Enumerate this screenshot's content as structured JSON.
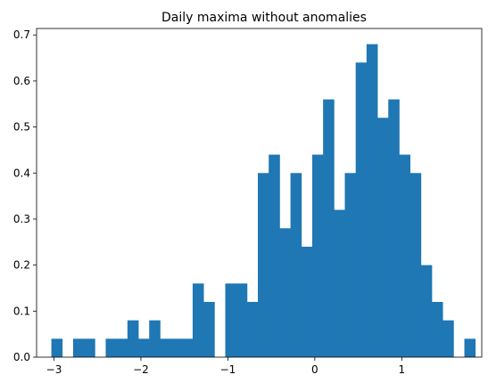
{
  "chart_data": {
    "type": "bar",
    "title": "Daily maxima without anomalies",
    "xlabel": "",
    "ylabel": "",
    "xlim": [
      -3.2,
      1.92
    ],
    "ylim": [
      0,
      0.714
    ],
    "x_ticks": [
      -3,
      -2,
      -1,
      0,
      1
    ],
    "x_tick_labels": [
      "−3",
      "−2",
      "−1",
      "0",
      "1"
    ],
    "y_ticks": [
      0.0,
      0.1,
      0.2,
      0.3,
      0.4,
      0.5,
      0.6,
      0.7
    ],
    "y_tick_labels": [
      "0.0",
      "0.1",
      "0.2",
      "0.3",
      "0.4",
      "0.5",
      "0.6",
      "0.7"
    ],
    "grid": false,
    "bar_color": "#1f77b4",
    "bin_edges": [
      -3.03,
      -2.905,
      -2.78,
      -2.655,
      -2.53,
      -2.405,
      -2.28,
      -2.155,
      -2.03,
      -1.905,
      -1.78,
      -1.655,
      -1.53,
      -1.405,
      -1.28,
      -1.155,
      -1.03,
      -0.905,
      -0.78,
      -0.655,
      -0.53,
      -0.405,
      -0.28,
      -0.155,
      -0.03,
      0.095,
      0.22,
      0.345,
      0.47,
      0.595,
      0.72,
      0.845,
      0.97,
      1.095,
      1.22,
      1.345,
      1.47,
      1.595,
      1.72,
      1.845
    ],
    "values": [
      0.04,
      0,
      0.04,
      0.04,
      0,
      0.04,
      0.04,
      0.08,
      0.04,
      0.08,
      0.04,
      0.04,
      0.04,
      0.16,
      0.12,
      0,
      0.16,
      0.16,
      0.12,
      0.4,
      0.44,
      0.28,
      0.4,
      0.24,
      0.44,
      0.56,
      0.32,
      0.4,
      0.64,
      0.68,
      0.52,
      0.56,
      0.44,
      0.4,
      0.2,
      0.12,
      0.08,
      0,
      0.04
    ]
  }
}
